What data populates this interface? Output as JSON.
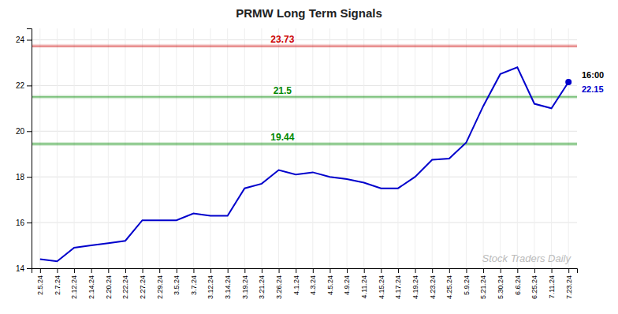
{
  "chart_data": {
    "type": "line",
    "title": "PRMW Long Term Signals",
    "categories": [
      "2.5.24",
      "2.7.24",
      "2.12.24",
      "2.14.24",
      "2.20.24",
      "2.22.24",
      "2.27.24",
      "2.29.24",
      "3.5.24",
      "3.7.24",
      "3.12.24",
      "3.14.24",
      "3.19.24",
      "3.21.24",
      "3.26.24",
      "4.1.24",
      "4.3.24",
      "4.5.24",
      "4.9.24",
      "4.11.24",
      "4.15.24",
      "4.17.24",
      "4.19.24",
      "4.23.24",
      "4.25.24",
      "5.9.24",
      "5.21.24",
      "5.30.24",
      "6.6.24",
      "6.25.24",
      "7.11.24",
      "7.23.24"
    ],
    "values": [
      14.4,
      14.3,
      14.9,
      15.0,
      15.1,
      15.2,
      16.1,
      16.1,
      16.1,
      16.4,
      16.3,
      16.3,
      17.5,
      17.7,
      18.3,
      18.1,
      18.2,
      18.0,
      17.9,
      17.75,
      17.5,
      17.5,
      18.0,
      18.75,
      18.8,
      19.5,
      21.1,
      22.5,
      22.8,
      21.2,
      21.0,
      22.15
    ],
    "color": "#0000cc",
    "hlines": [
      {
        "value": 23.73,
        "color": "#cc0000"
      },
      {
        "value": 21.5,
        "color": "#008800"
      },
      {
        "value": 19.44,
        "color": "#008800"
      }
    ],
    "annotations": [
      {
        "text": "16:00",
        "color": "#000000"
      },
      {
        "text": "22.15",
        "color": "#0000cc"
      },
      {
        "text": "Stock Traders Daily",
        "color": "#bbbbbb"
      }
    ],
    "ylim": [
      14,
      24.5
    ],
    "yticks": [
      14,
      16,
      18,
      20,
      22,
      24
    ],
    "grid": true
  }
}
